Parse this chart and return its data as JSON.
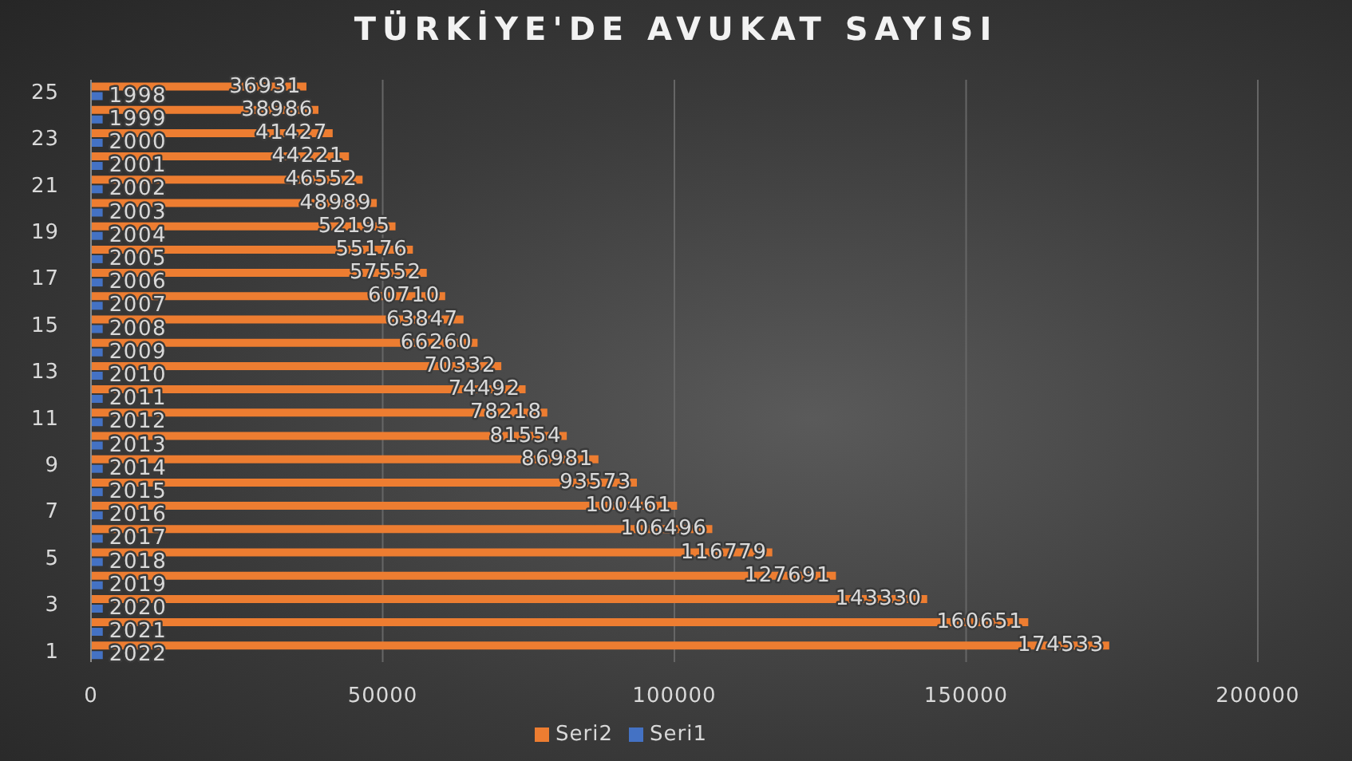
{
  "chart_data": {
    "type": "bar",
    "orientation": "horizontal",
    "title": "TÜRKİYE'DE AVUKAT SAYISI",
    "categories": [
      "25",
      null,
      "23",
      null,
      "21",
      null,
      "19",
      null,
      "17",
      null,
      "15",
      null,
      "13",
      null,
      "11",
      null,
      "9",
      null,
      "7",
      null,
      "5",
      null,
      "3",
      null,
      "1"
    ],
    "series": [
      {
        "name": "Seri2",
        "color": "#ed7d31",
        "values": [
          36931,
          38986,
          41427,
          44221,
          46552,
          48989,
          52195,
          55176,
          57552,
          60710,
          63847,
          66260,
          70332,
          74492,
          78218,
          81554,
          86981,
          93573,
          100461,
          106496,
          116779,
          127691,
          143330,
          160651,
          174533
        ]
      },
      {
        "name": "Seri1",
        "color": "#4472c4",
        "values": [
          1998,
          1999,
          2000,
          2001,
          2002,
          2003,
          2004,
          2005,
          2006,
          2007,
          2008,
          2009,
          2010,
          2011,
          2012,
          2013,
          2014,
          2015,
          2016,
          2017,
          2018,
          2019,
          2020,
          2021,
          2022
        ]
      }
    ],
    "xlim": [
      0,
      200000
    ],
    "xticks": [
      0,
      50000,
      100000,
      150000,
      200000
    ],
    "grid": "x",
    "legend": "bottom",
    "data_labels": true
  }
}
